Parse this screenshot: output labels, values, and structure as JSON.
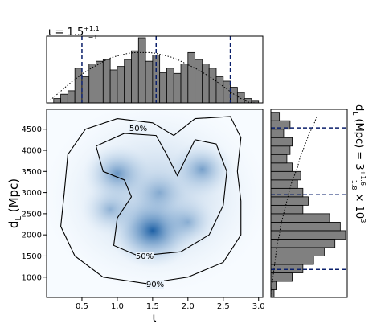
{
  "chart_data": {
    "type": "corner",
    "title": {
      "main": "ι = 1.5",
      "sup": "+1.1",
      "sub": "−1"
    },
    "xlabel": "ι",
    "ylabel": {
      "main": "d",
      "sub": "L",
      "rest": " (Mpc)"
    },
    "side_label": {
      "main": "d",
      "sub": "L",
      "mid": " (Mpc) = 3",
      "sup": "+1.6",
      "subv": "−1.8",
      "tail": " × 10",
      "exp": "3"
    },
    "xlim": [
      0,
      3.06
    ],
    "ylim": [
      520,
      4970
    ],
    "xticks": [
      0.5,
      {
        "value": 1,
        "label": "1.0"
      },
      1.5,
      {
        "value": 2,
        "label": "2.0"
      },
      2.5,
      {
        "value": 3,
        "label": "3.0"
      }
    ],
    "yticks": [
      1000,
      1500,
      2000,
      2500,
      3000,
      3500,
      4000,
      4500
    ],
    "density": {
      "x": [
        1.5,
        1.0,
        2.2,
        0.9,
        2.0,
        1.6
      ],
      "y": [
        2100,
        3450,
        3550,
        2600,
        2300,
        3000
      ],
      "values": [
        1,
        0.6,
        0.55,
        0.4,
        0.4,
        0.3
      ],
      "color": "#2171b5"
    },
    "contours": [
      {
        "name": "90%",
        "x": [
          0.25,
          0.3,
          0.55,
          1.0,
          1.5,
          1.8,
          2.1,
          2.6,
          2.75,
          2.7,
          2.75,
          2.75,
          2.5,
          2.0,
          1.4,
          0.8,
          0.4,
          0.2,
          0.25
        ],
        "y": [
          3000,
          3900,
          4500,
          4750,
          4650,
          4350,
          4750,
          4800,
          4300,
          3500,
          2800,
          2000,
          1350,
          1000,
          850,
          1000,
          1500,
          2200,
          3000
        ]
      },
      {
        "name": "50%",
        "x": [
          0.7,
          1.1,
          1.55,
          1.7,
          1.85,
          2.1,
          2.4,
          2.55,
          2.5,
          2.3,
          1.9,
          1.3,
          0.95,
          1.0,
          1.2,
          1.1,
          0.8,
          0.7
        ],
        "y": [
          4100,
          4400,
          4350,
          3900,
          3400,
          4250,
          4150,
          3500,
          2700,
          2000,
          1600,
          1500,
          1750,
          2400,
          2900,
          3300,
          3500,
          4100
        ]
      }
    ],
    "top_hist": {
      "bins": [
        0,
        0.1,
        0.2,
        0.3,
        0.4,
        0.5,
        0.6,
        0.7,
        0.8,
        0.9,
        1,
        1.1,
        1.2,
        1.3,
        1.4,
        1.5,
        1.6,
        1.7,
        1.8,
        1.9,
        2,
        2.1,
        2.2,
        2.3,
        2.4,
        2.5,
        2.6,
        2.7,
        2.8,
        2.9,
        3
      ],
      "counts": [
        0,
        5,
        10,
        14,
        40,
        30,
        45,
        48,
        50,
        38,
        42,
        50,
        60,
        75,
        48,
        55,
        35,
        40,
        34,
        45,
        58,
        50,
        45,
        40,
        30,
        25,
        18,
        12,
        5,
        2
      ],
      "prior": [
        3,
        10,
        17,
        24,
        30,
        36,
        41,
        45,
        50,
        53,
        55,
        57,
        58,
        58,
        58,
        57,
        55,
        53,
        50,
        46,
        42,
        38,
        33,
        28,
        22,
        16,
        10,
        5,
        1,
        0
      ],
      "quantiles": [
        0.5,
        1.55,
        2.6
      ]
    },
    "side_hist": {
      "bins": [
        500,
        700,
        900,
        1100,
        1300,
        1500,
        1700,
        1900,
        2100,
        2300,
        2500,
        2700,
        2900,
        3100,
        3300,
        3500,
        3700,
        3900,
        4100,
        4300,
        4500,
        4700,
        4900
      ],
      "counts": [
        3,
        5,
        20,
        30,
        40,
        50,
        60,
        70,
        65,
        55,
        30,
        35,
        30,
        25,
        28,
        20,
        15,
        18,
        20,
        12,
        18,
        8
      ],
      "prior": [
        1,
        1,
        2,
        3,
        4,
        5,
        6,
        8,
        9,
        11,
        13,
        15,
        17,
        19,
        22,
        25,
        27,
        30,
        33,
        36,
        40,
        43
      ],
      "quantiles": [
        1180,
        2950,
        4530
      ]
    },
    "hist_color": "#808080",
    "quantile_color": "#0a1f6b"
  }
}
